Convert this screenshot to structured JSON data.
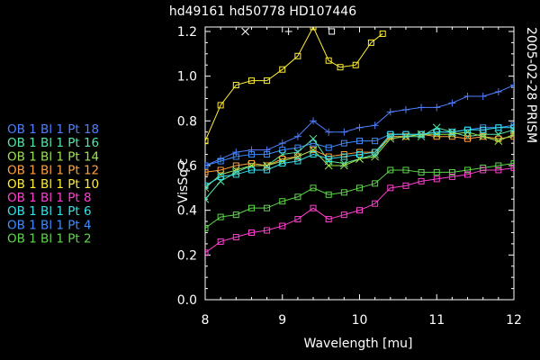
{
  "chart_data": {
    "type": "line",
    "title": "hd49161   hd50778   HD107446",
    "side_label": "2005-02-28 PRISM",
    "xlabel": "Wavelength [mu]",
    "ylabel": "VisSq c",
    "xlim": [
      8,
      12
    ],
    "ylim": [
      0,
      1.22
    ],
    "xticks": [
      8,
      9,
      10,
      11,
      12
    ],
    "yticks": [
      0.0,
      0.2,
      0.4,
      0.6,
      0.8,
      1.0,
      1.2
    ],
    "xtick_labels": [
      "8",
      "9",
      "10",
      "11",
      "12"
    ],
    "ytick_labels": [
      "0.0",
      "0.2",
      "0.4",
      "0.6",
      "0.8",
      "1.0",
      "1.2"
    ],
    "grid": false,
    "legend_position": "left",
    "legend": [
      {
        "label": "OB 1 Bl 1 Pt 18",
        "color": "#4f7fff"
      },
      {
        "label": "OB 1 Bl 1 Pt 16",
        "color": "#55e6a8"
      },
      {
        "label": "OB 1 Bl 1 Pt 14",
        "color": "#9be24f"
      },
      {
        "label": "OB 1 Bl 1 Pt 12",
        "color": "#ff9f3d"
      },
      {
        "label": "OB 1 Bl 1 Pt 10",
        "color": "#ffee33"
      },
      {
        "label": "OB 1 Bl 1 Pt 8",
        "color": "#ff3fd0"
      },
      {
        "label": "OB 1 Bl 1 Pt 6",
        "color": "#36e0e8"
      },
      {
        "label": "OB 1 Bl 1 Pt 4",
        "color": "#3f8cff"
      },
      {
        "label": "OB 1 Bl 1 Pt 2",
        "color": "#5ed64b"
      }
    ],
    "series": [
      {
        "color": "#ffee33",
        "marker": "square",
        "x": [
          8.0,
          8.2,
          8.4,
          8.6,
          8.8,
          9.0,
          9.2,
          9.4,
          9.6,
          9.75,
          9.95,
          10.15,
          10.3
        ],
        "y": [
          0.71,
          0.87,
          0.96,
          0.98,
          0.98,
          1.03,
          1.09,
          1.22,
          1.07,
          1.04,
          1.05,
          1.15,
          1.19
        ]
      },
      {
        "color": "#4f7fff",
        "marker": "plus",
        "x": [
          8.0,
          8.2,
          8.4,
          8.6,
          8.8,
          9.0,
          9.2,
          9.4,
          9.6,
          9.8,
          10.0,
          10.2,
          10.4,
          10.6,
          10.8,
          11.0,
          11.2,
          11.4,
          11.6,
          11.8,
          12.0
        ],
        "y": [
          0.6,
          0.63,
          0.66,
          0.67,
          0.67,
          0.7,
          0.73,
          0.8,
          0.75,
          0.75,
          0.77,
          0.78,
          0.84,
          0.85,
          0.86,
          0.86,
          0.88,
          0.91,
          0.91,
          0.93,
          0.96
        ]
      },
      {
        "color": "#3f8cff",
        "marker": "square",
        "x": [
          8.0,
          8.2,
          8.4,
          8.6,
          8.8,
          9.0,
          9.2,
          9.4,
          9.6,
          9.8,
          10.0,
          10.2,
          10.4,
          10.6,
          10.8,
          11.0,
          11.2,
          11.4,
          11.6,
          11.8,
          12.0
        ],
        "y": [
          0.6,
          0.62,
          0.64,
          0.65,
          0.65,
          0.67,
          0.68,
          0.7,
          0.68,
          0.7,
          0.71,
          0.71,
          0.74,
          0.74,
          0.74,
          0.75,
          0.75,
          0.76,
          0.77,
          0.77,
          0.78
        ]
      },
      {
        "color": "#55e6a8",
        "marker": "cross",
        "x": [
          8.0,
          8.2,
          8.4,
          8.6,
          8.8,
          9.0,
          9.2,
          9.4,
          9.6,
          9.8,
          10.0,
          10.2,
          10.4,
          10.6,
          10.8,
          11.0,
          11.2,
          11.4,
          11.6,
          11.8,
          12.0
        ],
        "y": [
          0.45,
          0.53,
          0.57,
          0.6,
          0.6,
          0.65,
          0.66,
          0.72,
          0.62,
          0.61,
          0.63,
          0.65,
          0.73,
          0.73,
          0.73,
          0.77,
          0.75,
          0.73,
          0.74,
          0.74,
          0.76
        ]
      },
      {
        "color": "#ff9f3d",
        "marker": "square",
        "x": [
          8.0,
          8.2,
          8.4,
          8.6,
          8.8,
          9.0,
          9.2,
          9.4,
          9.6,
          9.8,
          10.0,
          10.2,
          10.4,
          10.6,
          10.8,
          11.0,
          11.2,
          11.4,
          11.6,
          11.8,
          12.0
        ],
        "y": [
          0.57,
          0.58,
          0.6,
          0.61,
          0.6,
          0.63,
          0.64,
          0.67,
          0.64,
          0.65,
          0.66,
          0.66,
          0.73,
          0.73,
          0.74,
          0.73,
          0.73,
          0.72,
          0.73,
          0.72,
          0.73
        ]
      },
      {
        "color": "#9be24f",
        "marker": "cross",
        "x": [
          8.0,
          8.2,
          8.4,
          8.6,
          8.8,
          9.0,
          9.2,
          9.4,
          9.6,
          9.8,
          10.0,
          10.2,
          10.4,
          10.6,
          10.8,
          11.0,
          11.2,
          11.4,
          11.6,
          11.8,
          12.0
        ],
        "y": [
          0.5,
          0.56,
          0.58,
          0.6,
          0.6,
          0.62,
          0.64,
          0.67,
          0.6,
          0.6,
          0.63,
          0.64,
          0.72,
          0.73,
          0.74,
          0.74,
          0.74,
          0.75,
          0.73,
          0.71,
          0.74
        ]
      },
      {
        "color": "#36e0e8",
        "marker": "square",
        "x": [
          8.0,
          8.2,
          8.4,
          8.6,
          8.8,
          9.0,
          9.2,
          9.4,
          9.6,
          9.8,
          10.0,
          10.2,
          10.4,
          10.6,
          10.8,
          11.0,
          11.2,
          11.4,
          11.6,
          11.8,
          12.0
        ],
        "y": [
          0.51,
          0.55,
          0.56,
          0.58,
          0.58,
          0.61,
          0.62,
          0.65,
          0.63,
          0.64,
          0.65,
          0.66,
          0.74,
          0.74,
          0.74,
          0.75,
          0.75,
          0.76,
          0.76,
          0.77,
          0.77
        ]
      },
      {
        "color": "#5ed64b",
        "marker": "square",
        "x": [
          8.0,
          8.2,
          8.4,
          8.6,
          8.8,
          9.0,
          9.2,
          9.4,
          9.6,
          9.8,
          10.0,
          10.2,
          10.4,
          10.6,
          10.8,
          11.0,
          11.2,
          11.4,
          11.6,
          11.8,
          12.0
        ],
        "y": [
          0.32,
          0.37,
          0.38,
          0.41,
          0.41,
          0.44,
          0.46,
          0.5,
          0.47,
          0.48,
          0.5,
          0.52,
          0.58,
          0.58,
          0.57,
          0.57,
          0.57,
          0.58,
          0.59,
          0.6,
          0.61
        ]
      },
      {
        "color": "#ff3fd0",
        "marker": "square",
        "x": [
          8.0,
          8.2,
          8.4,
          8.6,
          8.8,
          9.0,
          9.2,
          9.4,
          9.6,
          9.8,
          10.0,
          10.2,
          10.4,
          10.6,
          10.8,
          11.0,
          11.2,
          11.4,
          11.6,
          11.8,
          12.0
        ],
        "y": [
          0.21,
          0.26,
          0.28,
          0.3,
          0.31,
          0.33,
          0.36,
          0.41,
          0.36,
          0.38,
          0.4,
          0.43,
          0.5,
          0.51,
          0.53,
          0.54,
          0.55,
          0.56,
          0.58,
          0.58,
          0.59
        ]
      }
    ],
    "annotation_markers": [
      {
        "symbol": "cross",
        "x": 8.52,
        "y": 1.2,
        "color": "#ffffff"
      },
      {
        "symbol": "plus",
        "x": 9.08,
        "y": 1.2,
        "color": "#ffffff"
      },
      {
        "symbol": "square",
        "x": 9.64,
        "y": 1.2,
        "color": "#ffffff"
      }
    ]
  }
}
